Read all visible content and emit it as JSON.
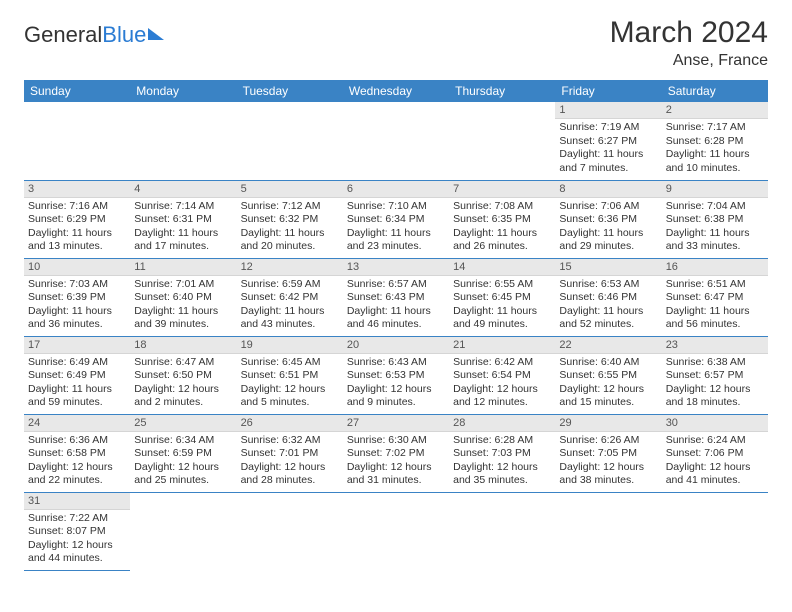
{
  "logo": {
    "part1": "General",
    "part2": "Blue"
  },
  "title": "March 2024",
  "location": "Anse, France",
  "weekdays": [
    "Sunday",
    "Monday",
    "Tuesday",
    "Wednesday",
    "Thursday",
    "Friday",
    "Saturday"
  ],
  "colors": {
    "header_bg": "#3a83c5",
    "header_text": "#ffffff",
    "daynum_bg": "#e8e8e8",
    "row_underline": "#3a83c5",
    "logo_blue": "#2b7cd3"
  },
  "weeks": [
    [
      null,
      null,
      null,
      null,
      null,
      {
        "n": "1",
        "sr": "7:19 AM",
        "ss": "6:27 PM",
        "dl": "11 hours and 7 minutes."
      },
      {
        "n": "2",
        "sr": "7:17 AM",
        "ss": "6:28 PM",
        "dl": "11 hours and 10 minutes."
      }
    ],
    [
      {
        "n": "3",
        "sr": "7:16 AM",
        "ss": "6:29 PM",
        "dl": "11 hours and 13 minutes."
      },
      {
        "n": "4",
        "sr": "7:14 AM",
        "ss": "6:31 PM",
        "dl": "11 hours and 17 minutes."
      },
      {
        "n": "5",
        "sr": "7:12 AM",
        "ss": "6:32 PM",
        "dl": "11 hours and 20 minutes."
      },
      {
        "n": "6",
        "sr": "7:10 AM",
        "ss": "6:34 PM",
        "dl": "11 hours and 23 minutes."
      },
      {
        "n": "7",
        "sr": "7:08 AM",
        "ss": "6:35 PM",
        "dl": "11 hours and 26 minutes."
      },
      {
        "n": "8",
        "sr": "7:06 AM",
        "ss": "6:36 PM",
        "dl": "11 hours and 29 minutes."
      },
      {
        "n": "9",
        "sr": "7:04 AM",
        "ss": "6:38 PM",
        "dl": "11 hours and 33 minutes."
      }
    ],
    [
      {
        "n": "10",
        "sr": "7:03 AM",
        "ss": "6:39 PM",
        "dl": "11 hours and 36 minutes."
      },
      {
        "n": "11",
        "sr": "7:01 AM",
        "ss": "6:40 PM",
        "dl": "11 hours and 39 minutes."
      },
      {
        "n": "12",
        "sr": "6:59 AM",
        "ss": "6:42 PM",
        "dl": "11 hours and 43 minutes."
      },
      {
        "n": "13",
        "sr": "6:57 AM",
        "ss": "6:43 PM",
        "dl": "11 hours and 46 minutes."
      },
      {
        "n": "14",
        "sr": "6:55 AM",
        "ss": "6:45 PM",
        "dl": "11 hours and 49 minutes."
      },
      {
        "n": "15",
        "sr": "6:53 AM",
        "ss": "6:46 PM",
        "dl": "11 hours and 52 minutes."
      },
      {
        "n": "16",
        "sr": "6:51 AM",
        "ss": "6:47 PM",
        "dl": "11 hours and 56 minutes."
      }
    ],
    [
      {
        "n": "17",
        "sr": "6:49 AM",
        "ss": "6:49 PM",
        "dl": "11 hours and 59 minutes."
      },
      {
        "n": "18",
        "sr": "6:47 AM",
        "ss": "6:50 PM",
        "dl": "12 hours and 2 minutes."
      },
      {
        "n": "19",
        "sr": "6:45 AM",
        "ss": "6:51 PM",
        "dl": "12 hours and 5 minutes."
      },
      {
        "n": "20",
        "sr": "6:43 AM",
        "ss": "6:53 PM",
        "dl": "12 hours and 9 minutes."
      },
      {
        "n": "21",
        "sr": "6:42 AM",
        "ss": "6:54 PM",
        "dl": "12 hours and 12 minutes."
      },
      {
        "n": "22",
        "sr": "6:40 AM",
        "ss": "6:55 PM",
        "dl": "12 hours and 15 minutes."
      },
      {
        "n": "23",
        "sr": "6:38 AM",
        "ss": "6:57 PM",
        "dl": "12 hours and 18 minutes."
      }
    ],
    [
      {
        "n": "24",
        "sr": "6:36 AM",
        "ss": "6:58 PM",
        "dl": "12 hours and 22 minutes."
      },
      {
        "n": "25",
        "sr": "6:34 AM",
        "ss": "6:59 PM",
        "dl": "12 hours and 25 minutes."
      },
      {
        "n": "26",
        "sr": "6:32 AM",
        "ss": "7:01 PM",
        "dl": "12 hours and 28 minutes."
      },
      {
        "n": "27",
        "sr": "6:30 AM",
        "ss": "7:02 PM",
        "dl": "12 hours and 31 minutes."
      },
      {
        "n": "28",
        "sr": "6:28 AM",
        "ss": "7:03 PM",
        "dl": "12 hours and 35 minutes."
      },
      {
        "n": "29",
        "sr": "6:26 AM",
        "ss": "7:05 PM",
        "dl": "12 hours and 38 minutes."
      },
      {
        "n": "30",
        "sr": "6:24 AM",
        "ss": "7:06 PM",
        "dl": "12 hours and 41 minutes."
      }
    ],
    [
      {
        "n": "31",
        "sr": "7:22 AM",
        "ss": "8:07 PM",
        "dl": "12 hours and 44 minutes."
      },
      null,
      null,
      null,
      null,
      null,
      null
    ]
  ],
  "labels": {
    "sunrise": "Sunrise: ",
    "sunset": "Sunset: ",
    "daylight": "Daylight: "
  }
}
